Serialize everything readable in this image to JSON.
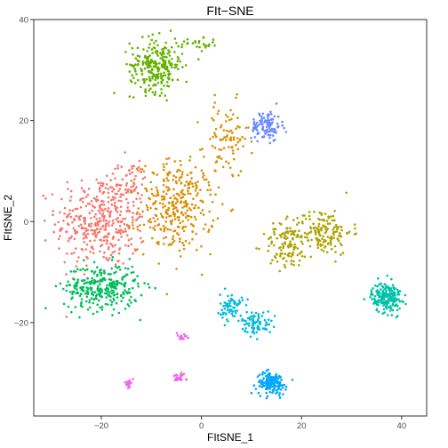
{
  "chart_data": {
    "type": "scatter",
    "title": "FIt−SNE",
    "xlabel": "FItSNE_1",
    "ylabel": "FItSNE_2",
    "xlim": [
      -33.5,
      45
    ],
    "ylim": [
      -38.5,
      40
    ],
    "x_ticks": [
      -20,
      0,
      20,
      40
    ],
    "x_tick_labels": [
      "−20",
      "0",
      "20",
      "40"
    ],
    "y_ticks": [
      -20,
      0,
      20,
      40
    ],
    "y_tick_labels": [
      "−20",
      "0",
      "20",
      "40"
    ],
    "grid": false,
    "legend": "none",
    "clusters": [
      {
        "color": "#F8766D",
        "points": 380,
        "center": [
          -20,
          0
        ],
        "spread": [
          6,
          6
        ]
      },
      {
        "color": "#F8766D",
        "points": 50,
        "center": [
          -15,
          8
        ],
        "spread": [
          3,
          3
        ]
      },
      {
        "color": "#DB8E00",
        "points": 320,
        "center": [
          -5,
          3
        ],
        "spread": [
          5,
          6
        ]
      },
      {
        "color": "#DB8E00",
        "points": 90,
        "center": [
          5,
          16
        ],
        "spread": [
          3,
          5
        ]
      },
      {
        "color": "#AEA200",
        "points": 170,
        "center": [
          24,
          -2
        ],
        "spread": [
          4,
          3
        ]
      },
      {
        "color": "#AEA200",
        "points": 100,
        "center": [
          17,
          -5
        ],
        "spread": [
          3,
          3
        ]
      },
      {
        "color": "#64B200",
        "points": 260,
        "center": [
          -9,
          31
        ],
        "spread": [
          3.5,
          3.5
        ]
      },
      {
        "color": "#64B200",
        "points": 25,
        "center": [
          0,
          35
        ],
        "spread": [
          3,
          0.8
        ]
      },
      {
        "color": "#00BD5C",
        "points": 300,
        "center": [
          -20,
          -13
        ],
        "spread": [
          5,
          3
        ]
      },
      {
        "color": "#00C1A7",
        "points": 200,
        "center": [
          37,
          -15
        ],
        "spread": [
          2,
          2
        ]
      },
      {
        "color": "#00BADE",
        "points": 70,
        "center": [
          6,
          -17
        ],
        "spread": [
          1.5,
          1.8
        ]
      },
      {
        "color": "#00BADE",
        "points": 80,
        "center": [
          11,
          -20
        ],
        "spread": [
          2,
          1.5
        ]
      },
      {
        "color": "#00A6FF",
        "points": 150,
        "center": [
          14,
          -32
        ],
        "spread": [
          2,
          1.5
        ]
      },
      {
        "color": "#6C8AFF",
        "points": 110,
        "center": [
          13,
          19
        ],
        "spread": [
          2,
          2
        ]
      },
      {
        "color": "#EF67EB",
        "points": 25,
        "center": [
          -14.5,
          -32
        ],
        "spread": [
          0.3,
          0.5
        ]
      },
      {
        "color": "#EF67EB",
        "points": 25,
        "center": [
          -4.5,
          -31
        ],
        "spread": [
          1,
          0.5
        ]
      },
      {
        "color": "#EF67EB",
        "points": 15,
        "center": [
          -4,
          -23
        ],
        "spread": [
          0.8,
          0.8
        ]
      }
    ]
  }
}
